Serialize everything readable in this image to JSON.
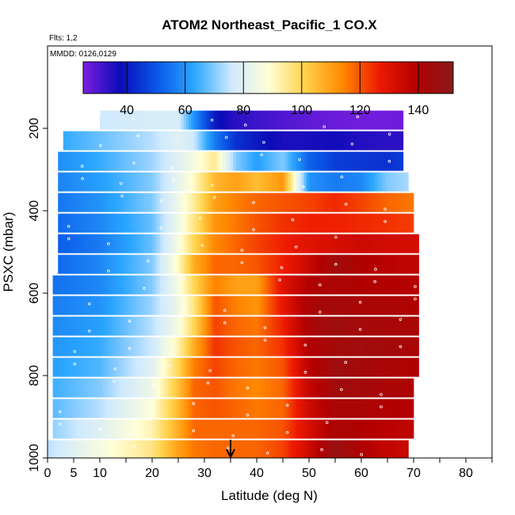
{
  "chart_data": {
    "type": "heatmap",
    "title": "ATOM2 Northeast_Pacific_1 CO.X",
    "flights_label": "Flts: 1,2",
    "date_label": "MMDD: 0126,0129",
    "xlabel": "Latitude (deg N)",
    "ylabel": "PSXC (mbar)",
    "xlim": [
      0,
      85
    ],
    "ylim": [
      1000,
      0
    ],
    "x_ticks": [
      0,
      5,
      10,
      20,
      30,
      40,
      50,
      60,
      70,
      80
    ],
    "x_minor_ticks": [
      15,
      25,
      35,
      45,
      55,
      65,
      75,
      85
    ],
    "y_ticks": [
      200,
      400,
      600,
      800,
      1000
    ],
    "colorbar": {
      "range": [
        25,
        152
      ],
      "ticks": [
        40,
        60,
        80,
        100,
        120,
        140
      ],
      "colors": [
        "#7a1fe0",
        "#0b0bb8",
        "#0a58e8",
        "#2aa6ff",
        "#cfe9ff",
        "#ffffd8",
        "#ffd24a",
        "#ff8a00",
        "#ee1a00",
        "#b30000",
        "#8a1a1a"
      ]
    },
    "arrow_latitude": 35,
    "pressure_levels": [
      180,
      230,
      280,
      330,
      380,
      430,
      480,
      530,
      580,
      630,
      680,
      730,
      780,
      830,
      880,
      930,
      980
    ],
    "latitude_range_per_level": [
      [
        10,
        68
      ],
      [
        3,
        68
      ],
      [
        2,
        68
      ],
      [
        2,
        69
      ],
      [
        2,
        70
      ],
      [
        2,
        70
      ],
      [
        2,
        71
      ],
      [
        2,
        71
      ],
      [
        1,
        71
      ],
      [
        1,
        71
      ],
      [
        1,
        71
      ],
      [
        1,
        71
      ],
      [
        1,
        71
      ],
      [
        1,
        70
      ],
      [
        1,
        70
      ],
      [
        1,
        70
      ],
      [
        0,
        69
      ]
    ],
    "value_knots_latitude": [
      0,
      10,
      20,
      25,
      28,
      32,
      36,
      40,
      45,
      50,
      55,
      60,
      65,
      72
    ],
    "values": [
      [
        72,
        76,
        78,
        78,
        60,
        40,
        34,
        32,
        30,
        28,
        27,
        26,
        26,
        27
      ],
      [
        62,
        68,
        74,
        80,
        76,
        56,
        44,
        40,
        36,
        36,
        37,
        35,
        34,
        34
      ],
      [
        58,
        64,
        72,
        80,
        86,
        95,
        70,
        62,
        70,
        52,
        46,
        45,
        44,
        48
      ],
      [
        56,
        62,
        70,
        82,
        90,
        106,
        110,
        105,
        112,
        60,
        56,
        58,
        70,
        75
      ],
      [
        54,
        60,
        70,
        84,
        94,
        110,
        115,
        118,
        120,
        122,
        125,
        122,
        118,
        115
      ],
      [
        52,
        58,
        68,
        84,
        96,
        112,
        116,
        120,
        124,
        126,
        126,
        125,
        124,
        122
      ],
      [
        50,
        56,
        68,
        86,
        100,
        114,
        118,
        122,
        126,
        130,
        132,
        134,
        133,
        132
      ],
      [
        52,
        58,
        70,
        90,
        108,
        118,
        118,
        120,
        126,
        135,
        145,
        140,
        138,
        136
      ],
      [
        54,
        58,
        70,
        86,
        100,
        115,
        110,
        110,
        130,
        140,
        142,
        140,
        140,
        138
      ],
      [
        56,
        60,
        72,
        84,
        96,
        120,
        115,
        112,
        128,
        142,
        144,
        142,
        142,
        140
      ],
      [
        58,
        62,
        74,
        86,
        100,
        122,
        118,
        116,
        126,
        142,
        146,
        144,
        143,
        142
      ],
      [
        60,
        64,
        76,
        92,
        108,
        124,
        120,
        118,
        124,
        140,
        144,
        145,
        144,
        142
      ],
      [
        62,
        66,
        80,
        100,
        115,
        122,
        118,
        116,
        120,
        138,
        146,
        144,
        142,
        140
      ],
      [
        64,
        70,
        84,
        104,
        118,
        120,
        116,
        114,
        118,
        136,
        145,
        144,
        142,
        140
      ],
      [
        66,
        74,
        88,
        106,
        118,
        120,
        118,
        116,
        118,
        134,
        142,
        142,
        140,
        138
      ],
      [
        70,
        80,
        92,
        108,
        118,
        118,
        118,
        118,
        120,
        132,
        142,
        140,
        138,
        136
      ],
      [
        74,
        86,
        96,
        110,
        116,
        118,
        118,
        118,
        122,
        134,
        148,
        140,
        136,
        134
      ]
    ]
  }
}
